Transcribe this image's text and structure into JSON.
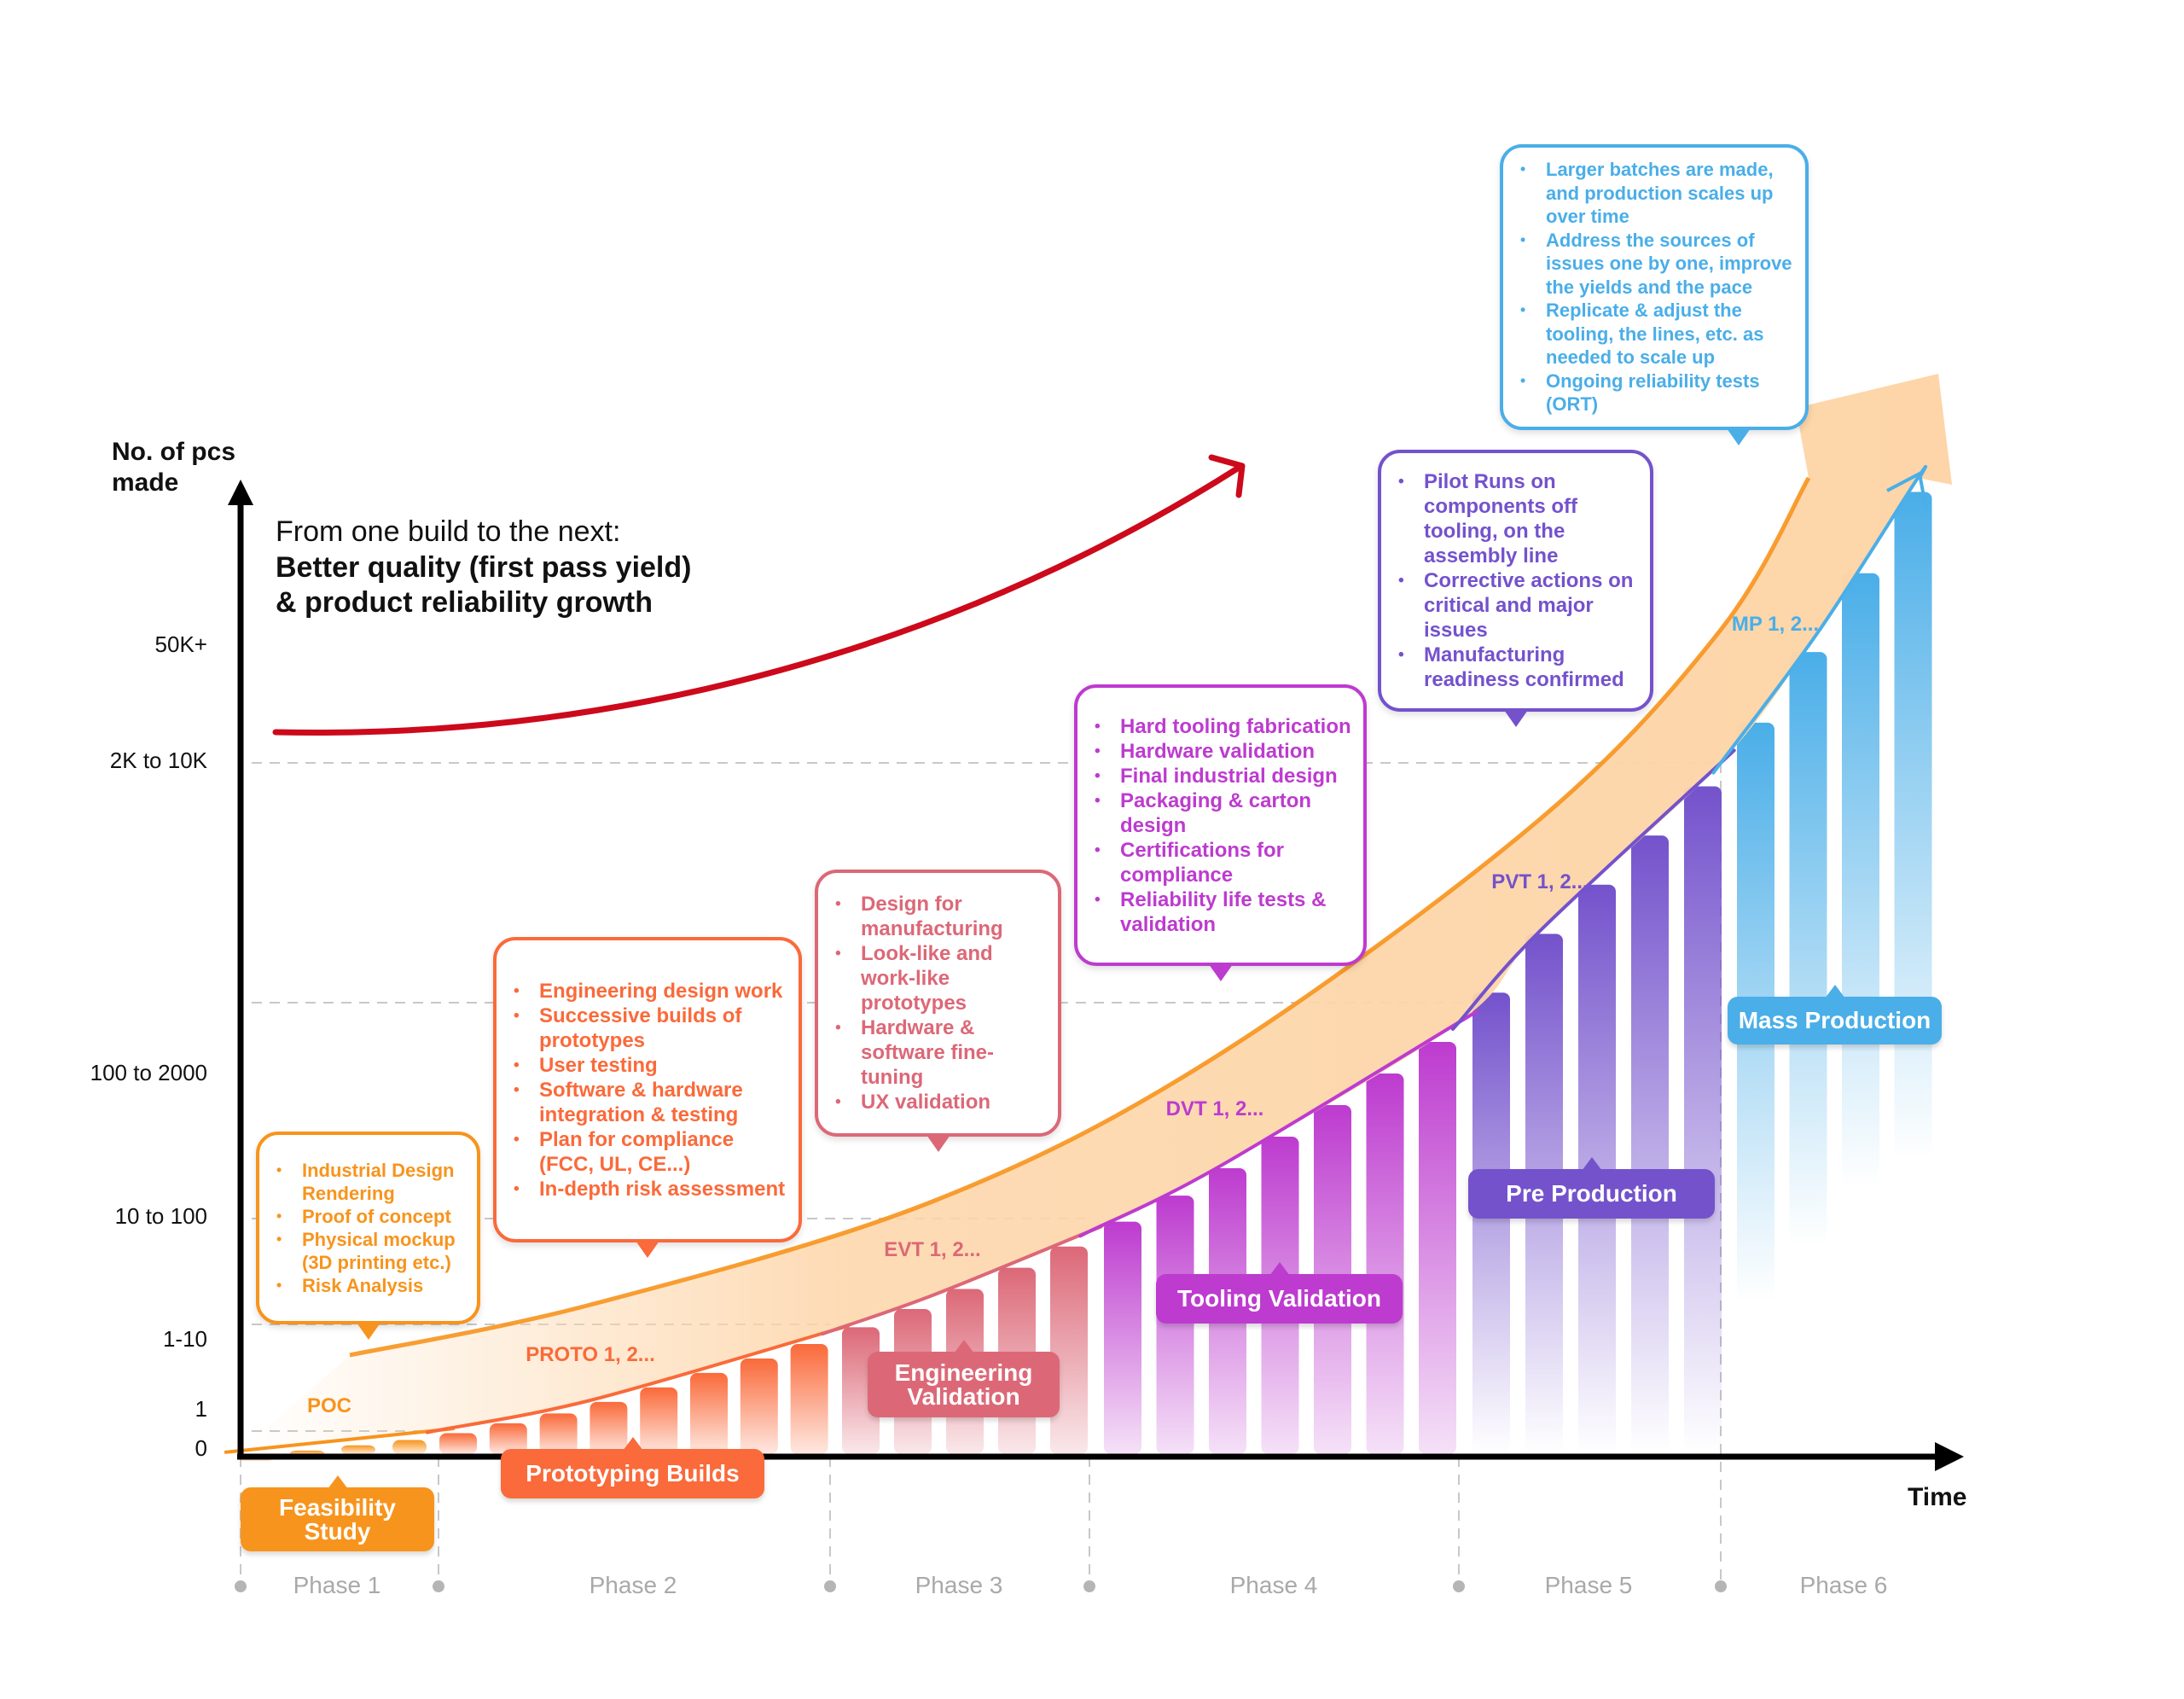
{
  "y_axis": {
    "label_line1": "No. of pcs",
    "label_line2": "made",
    "ticks": [
      "50K+",
      "2K to 10K",
      "100 to 2000",
      "10 to 100",
      "1-10",
      "1",
      "0"
    ]
  },
  "x_axis": {
    "label": "Time"
  },
  "headline": {
    "line1": "From one build to the next:",
    "line2": "Better quality (first pass yield)",
    "line3": "& product reliability growth"
  },
  "colors": {
    "feasibility": "#F7941D",
    "prototyping": "#FA6A3A",
    "engineering": "#DC6877",
    "tooling": "#BD3BCF",
    "preproduction": "#7452CC",
    "mass": "#4AAEE8",
    "quality_arrow": "#CC0A1B",
    "band": "#FDD5A8"
  },
  "phases": [
    {
      "label": "Phase 1",
      "stage": "Feasibility Study",
      "build": "POC"
    },
    {
      "label": "Phase 2",
      "stage": "Prototyping Builds",
      "build": "PROTO 1, 2..."
    },
    {
      "label": "Phase 3",
      "stage": "Engineering Validation",
      "build": "EVT 1, 2..."
    },
    {
      "label": "Phase 4",
      "stage": "Tooling Validation",
      "build": "DVT 1, 2..."
    },
    {
      "label": "Phase 5",
      "stage": "Pre Production",
      "build": "PVT 1, 2..."
    },
    {
      "label": "Phase 6",
      "stage": "Mass Production",
      "build": "MP 1, 2..."
    }
  ],
  "callouts": [
    {
      "items": [
        "Industrial Design Rendering",
        "Proof of concept",
        "Physical mockup (3D printing etc.)",
        "Risk Analysis"
      ]
    },
    {
      "items": [
        "Engineering design work",
        "Successive builds of prototypes",
        "User testing",
        "Software & hardware integration & testing",
        "Plan for compliance (FCC, UL, CE...)",
        "In-depth risk assessment"
      ]
    },
    {
      "items": [
        "Design for manufacturing",
        "Look-like and work-like prototypes",
        "Hardware & software fine-tuning",
        "UX validation"
      ]
    },
    {
      "items": [
        "Hard tooling fabrication",
        "Hardware validation",
        "Final industrial design",
        "Packaging & carton design",
        "Certifications for compliance",
        "Reliability life tests & validation"
      ]
    },
    {
      "items": [
        "Pilot Runs on components off tooling, on the assembly line",
        "Corrective actions on critical and major issues",
        "Manufacturing readiness confirmed"
      ]
    },
    {
      "items": [
        "Larger batches are made, and production scales up over time",
        "Address the sources of issues one by one, improve the yields and the pace",
        "Replicate & adjust the tooling, the lines, etc. as needed to scale up",
        "Ongoing reliability tests (ORT)"
      ]
    }
  ]
}
